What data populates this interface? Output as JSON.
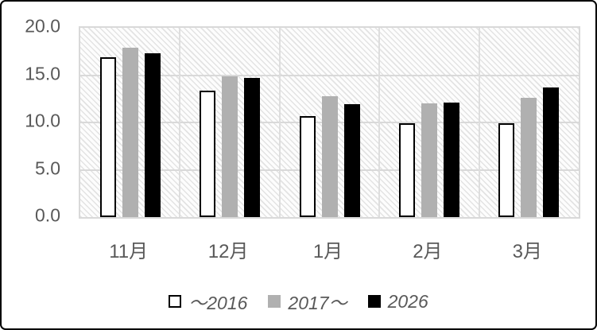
{
  "chart_data": {
    "type": "bar",
    "title": "",
    "xlabel": "",
    "ylabel": "",
    "categories": [
      "11月",
      "12月",
      "1月",
      "2月",
      "3月"
    ],
    "series": [
      {
        "name": "～2016",
        "fill": "#ffffff",
        "border": "#000000",
        "values": [
          16.9,
          13.4,
          10.7,
          9.9,
          9.9
        ]
      },
      {
        "name": "2017～",
        "fill": "#b0b0b0",
        "border": "",
        "values": [
          17.9,
          14.9,
          12.8,
          12.0,
          12.6
        ]
      },
      {
        "name": "2026",
        "fill": "#000000",
        "border": "",
        "values": [
          17.3,
          14.7,
          11.9,
          12.1,
          13.7
        ]
      }
    ],
    "ylim": [
      0,
      20
    ],
    "yticks": [
      0,
      5,
      10,
      15,
      20
    ],
    "ytick_labels": [
      "0.0",
      "5.0",
      "10.0",
      "15.0",
      "20.0"
    ],
    "grid": "horizontal-major-and-vertical-category",
    "legend_position": "bottom-center",
    "plot_area_fill": "diagonal-hatch-pattern"
  },
  "colors": {
    "axis_text": "#595959",
    "gridline": "#d9d9d9",
    "hatch_line": "#e3e3e3",
    "background": "#ffffff",
    "frame_border": "#000000",
    "gray_series": "#b0b0b0",
    "black_series": "#000000"
  }
}
